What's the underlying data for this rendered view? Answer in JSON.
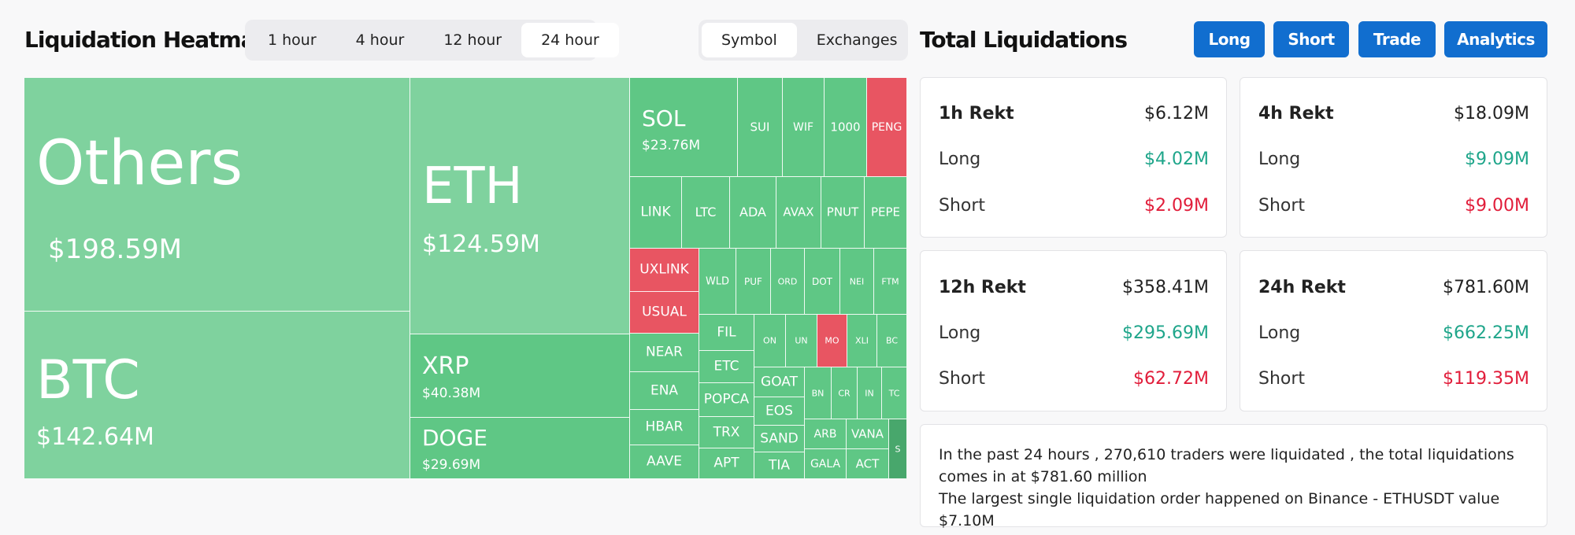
{
  "header": {
    "heatmap_title": "Liquidation Heatmap",
    "total_title": "Total Liquidations",
    "time_options": [
      "1 hour",
      "4 hour",
      "12 hour",
      "24 hour"
    ],
    "time_selected": "24 hour",
    "view_options": [
      "Symbol",
      "Exchanges"
    ],
    "view_selected": "Symbol",
    "buttons": [
      "Long",
      "Short",
      "Trade",
      "Analytics"
    ]
  },
  "colors": {
    "long_dominant": "#5fc785",
    "long_light": "#7fd29e",
    "short_dominant": "#e85562",
    "other": "#48a76c",
    "accent": "#116ecf"
  },
  "chart_data": {
    "type": "heatmap",
    "title": "Liquidation Heatmap",
    "value_unit": "USD",
    "tiles": [
      {
        "symbol": "Others",
        "value": "$198.59M"
      },
      {
        "symbol": "BTC",
        "value": "$142.64M"
      },
      {
        "symbol": "ETH",
        "value": "$124.59M"
      },
      {
        "symbol": "XRP",
        "value": "$40.38M"
      },
      {
        "symbol": "DOGE",
        "value": "$29.69M"
      },
      {
        "symbol": "SOL",
        "value": "$23.76M"
      },
      {
        "symbol": "SUI"
      },
      {
        "symbol": "WIF"
      },
      {
        "symbol": "1000"
      },
      {
        "symbol": "PENG"
      },
      {
        "symbol": "LINK"
      },
      {
        "symbol": "LTC"
      },
      {
        "symbol": "ADA"
      },
      {
        "symbol": "AVAX"
      },
      {
        "symbol": "PNUT"
      },
      {
        "symbol": "PEPE"
      },
      {
        "symbol": "UXLINK"
      },
      {
        "symbol": "USUAL"
      },
      {
        "symbol": "WLD"
      },
      {
        "symbol": "PUF"
      },
      {
        "symbol": "ORD"
      },
      {
        "symbol": "DOT"
      },
      {
        "symbol": "NEI"
      },
      {
        "symbol": "FTM"
      },
      {
        "symbol": "FIL"
      },
      {
        "symbol": "ETC"
      },
      {
        "symbol": "ON"
      },
      {
        "symbol": "UN"
      },
      {
        "symbol": "MO"
      },
      {
        "symbol": "XLI"
      },
      {
        "symbol": "BC"
      },
      {
        "symbol": "NEAR"
      },
      {
        "symbol": "ENA"
      },
      {
        "symbol": "HBAR"
      },
      {
        "symbol": "AAVE"
      },
      {
        "symbol": "GOAT"
      },
      {
        "symbol": "POPCA"
      },
      {
        "symbol": "EOS"
      },
      {
        "symbol": "TRX"
      },
      {
        "symbol": "SAND"
      },
      {
        "symbol": "APT"
      },
      {
        "symbol": "TIA"
      },
      {
        "symbol": "BN"
      },
      {
        "symbol": "CR"
      },
      {
        "symbol": "IN"
      },
      {
        "symbol": "TC"
      },
      {
        "symbol": "ARB"
      },
      {
        "symbol": "VANA"
      },
      {
        "symbol": "GALA"
      },
      {
        "symbol": "ACT"
      },
      {
        "symbol": "S"
      }
    ]
  },
  "stats": [
    {
      "label": "1h Rekt",
      "total": "$6.12M",
      "long_label": "Long",
      "long": "$4.02M",
      "short_label": "Short",
      "short": "$2.09M"
    },
    {
      "label": "4h Rekt",
      "total": "$18.09M",
      "long_label": "Long",
      "long": "$9.09M",
      "short_label": "Short",
      "short": "$9.00M"
    },
    {
      "label": "12h Rekt",
      "total": "$358.41M",
      "long_label": "Long",
      "long": "$295.69M",
      "short_label": "Short",
      "short": "$62.72M"
    },
    {
      "label": "24h Rekt",
      "total": "$781.60M",
      "long_label": "Long",
      "long": "$662.25M",
      "short_label": "Short",
      "short": "$119.35M"
    }
  ],
  "summary": {
    "line1": "In the past 24 hours , 270,610 traders were liquidated , the total liquidations comes in at $781.60 million",
    "line2": "The largest single liquidation order happened on Binance - ETHUSDT value $7.10M"
  }
}
